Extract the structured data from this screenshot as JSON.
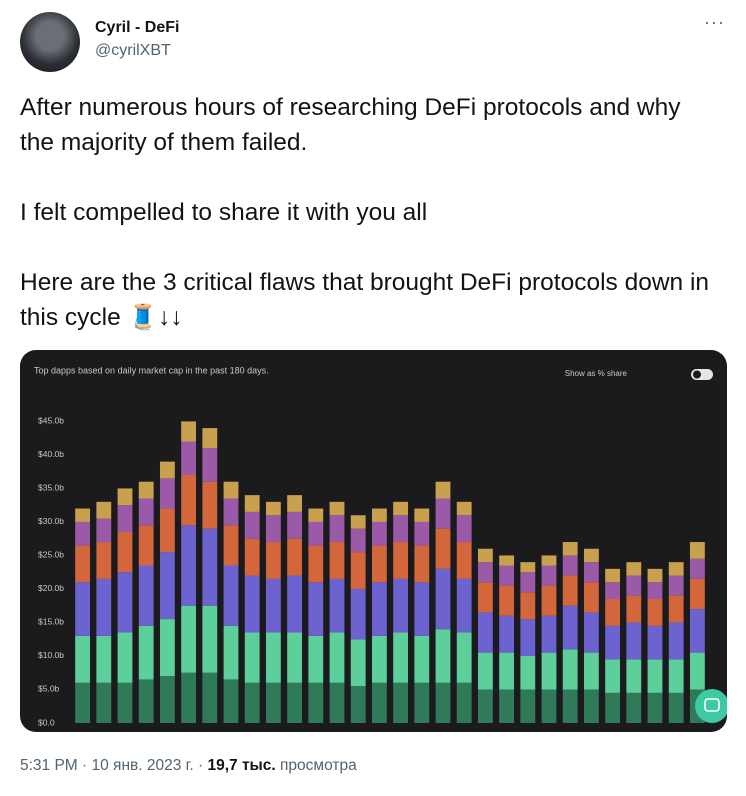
{
  "tweet": {
    "author": {
      "name": "Cyril - DeFi",
      "handle": "@cyrilXBT"
    },
    "menu": "···",
    "paragraphs": [
      "After numerous hours of researching DeFi protocols and why the majority of them failed.",
      "I felt compelled to share it with you all",
      "Here are the 3 critical flaws that brought DeFi protocols down in this cycle 🧵↓↓"
    ],
    "footer": {
      "time": "5:31 PM · 10 янв. 2023 г. · ",
      "views": "19,7 тыс.",
      "views_label": " просмотра"
    }
  },
  "chart_data": {
    "type": "stacked-bar",
    "title": "Top dapps based on daily market cap in the past 180 days.",
    "toggle_label": "Show as % share",
    "ylim": [
      0,
      47
    ],
    "yticks": [
      {
        "value": 0,
        "label": "$0.0"
      },
      {
        "value": 5,
        "label": "$5.0b"
      },
      {
        "value": 10,
        "label": "$10.0b"
      },
      {
        "value": 15,
        "label": "$15.0b"
      },
      {
        "value": 20,
        "label": "$20.0b"
      },
      {
        "value": 25,
        "label": "$25.0b"
      },
      {
        "value": 30,
        "label": "$30.0b"
      },
      {
        "value": 35,
        "label": "$35.0b"
      },
      {
        "value": 40,
        "label": "$40.0b"
      },
      {
        "value": 45,
        "label": "$45.0b"
      }
    ],
    "grid": false,
    "series": [
      {
        "color": "#2f7a58",
        "values": [
          6,
          6,
          6,
          6.5,
          7,
          7.5,
          7.5,
          6.5,
          6,
          6,
          6,
          6,
          6,
          5.5,
          6,
          6,
          6,
          6,
          6,
          5,
          5,
          5,
          5,
          5,
          5,
          4.5,
          4.5,
          4.5,
          4.5,
          5
        ]
      },
      {
        "color": "#5ccf9a",
        "values": [
          7,
          7,
          7.5,
          8,
          8.5,
          10,
          10,
          8,
          7.5,
          7.5,
          7.5,
          7,
          7.5,
          7,
          7,
          7.5,
          7,
          8,
          7.5,
          5.5,
          5.5,
          5,
          5.5,
          6,
          5.5,
          5,
          5,
          5,
          5,
          5.5
        ]
      },
      {
        "color": "#6c63d0",
        "values": [
          8,
          8.5,
          9,
          9,
          10,
          12,
          11.5,
          9,
          8.5,
          8,
          8.5,
          8,
          8,
          7.5,
          8,
          8,
          8,
          9,
          8,
          6,
          5.5,
          5.5,
          5.5,
          6.5,
          6,
          5,
          5.5,
          5,
          5.5,
          6.5
        ]
      },
      {
        "color": "#d4663c",
        "values": [
          5.5,
          5.5,
          6,
          6,
          6.5,
          7.5,
          7,
          6,
          5.5,
          5.5,
          5.5,
          5.5,
          5.5,
          5.5,
          5.5,
          5.5,
          5.5,
          6,
          5.5,
          4.5,
          4.5,
          4,
          4.5,
          4.5,
          4.5,
          4,
          4,
          4,
          4,
          4.5
        ]
      },
      {
        "color": "#9a5aa8",
        "values": [
          3.5,
          3.5,
          4,
          4,
          4.5,
          5,
          5,
          4,
          4,
          4,
          4,
          3.5,
          4,
          3.5,
          3.5,
          4,
          3.5,
          4.5,
          4,
          3,
          3,
          3,
          3,
          3,
          3,
          2.5,
          3,
          2.5,
          3,
          3
        ]
      },
      {
        "color": "#c8a04e",
        "values": [
          2,
          2.5,
          2.5,
          2.5,
          2.5,
          3,
          3,
          2.5,
          2.5,
          2,
          2.5,
          2,
          2,
          2,
          2,
          2,
          2,
          2.5,
          2,
          2,
          1.5,
          1.5,
          1.5,
          2,
          2,
          2,
          2,
          2,
          2,
          2.5
        ]
      }
    ]
  }
}
